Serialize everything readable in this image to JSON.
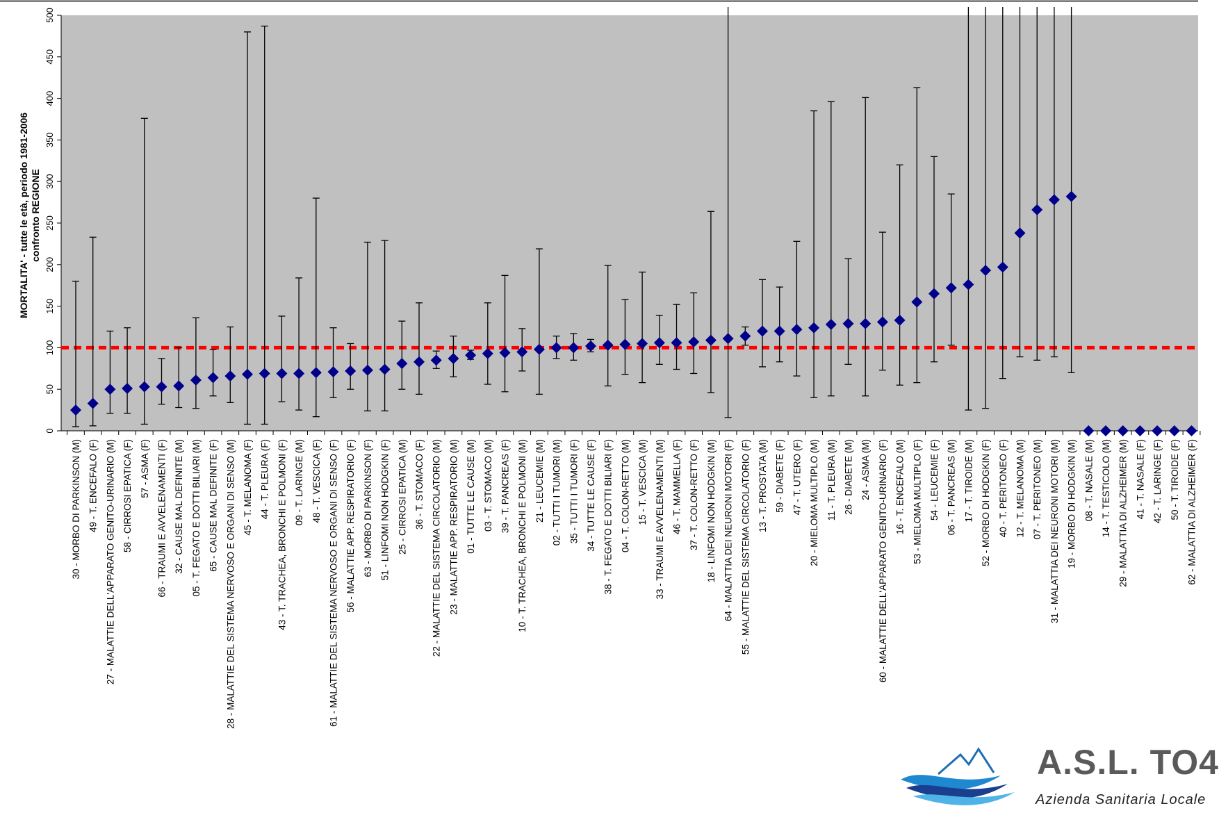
{
  "chart_data": {
    "type": "scatter",
    "ylabel_line1": "MORTALITA' -  tutte le età, periodo 1981-2006",
    "ylabel_line2": "confronto REGIONE",
    "ylim": [
      0,
      500
    ],
    "yticks": [
      0,
      50,
      100,
      150,
      200,
      250,
      300,
      350,
      400,
      450,
      500
    ],
    "reference_line": 100,
    "colors": {
      "plot_bg": "#c0c0c0",
      "marker": "#00008b",
      "reference_line": "#ff0000",
      "whisker": "#000000"
    },
    "grid": false,
    "points": [
      {
        "label": "30 -  MORBO DI PARKINSON (M)",
        "value": 25,
        "low": 5,
        "high": 180
      },
      {
        "label": "49 -  T. ENCEFALO (F)",
        "value": 33,
        "low": 6,
        "high": 233
      },
      {
        "label": "27 -  MALATTIE DELL'APPARATO GENITO-URINARIO (M)",
        "value": 50,
        "low": 21,
        "high": 120
      },
      {
        "label": "58 -  CIRROSI EPATICA (F)",
        "value": 51,
        "low": 21,
        "high": 124
      },
      {
        "label": "57 -  ASMA (F)",
        "value": 53,
        "low": 8,
        "high": 376
      },
      {
        "label": "66 -  TRAUMI E AVVELENAMENTI (F)",
        "value": 53,
        "low": 32,
        "high": 87
      },
      {
        "label": "32 -  CAUSE MAL DEFINITE (M)",
        "value": 54,
        "low": 28,
        "high": 100
      },
      {
        "label": "05 -  T. FEGATO E DOTTI BILIARI (M)",
        "value": 61,
        "low": 27,
        "high": 136
      },
      {
        "label": "65 -  CAUSE MAL DEFINITE (F)",
        "value": 64,
        "low": 42,
        "high": 98
      },
      {
        "label": "28 -  MALATTIE DEL SISTEMA NERVOSO E ORGANI DI SENSO (M)",
        "value": 66,
        "low": 34,
        "high": 125
      },
      {
        "label": "45 -  T. MELANOMA (F)",
        "value": 68,
        "low": 8,
        "high": 480
      },
      {
        "label": "44 -  T. PLEURA (F)",
        "value": 69,
        "low": 8,
        "high": 487
      },
      {
        "label": "43 -  T. TRACHEA, BRONCHI E POLMONI (F)",
        "value": 69,
        "low": 35,
        "high": 138
      },
      {
        "label": "09 -  T. LARINGE (M)",
        "value": 69,
        "low": 25,
        "high": 184
      },
      {
        "label": "48 -  T. VESCICA (F)",
        "value": 70,
        "low": 17,
        "high": 280
      },
      {
        "label": "61 -  MALATTIE DEL SISTEMA NERVOSO E ORGANI DI SENSO (F)",
        "value": 71,
        "low": 40,
        "high": 124
      },
      {
        "label": "56 -  MALATTIE APP. RESPIRATORIO (F)",
        "value": 72,
        "low": 50,
        "high": 105
      },
      {
        "label": "63 -  MORBO DI PARKINSON (F)",
        "value": 73,
        "low": 24,
        "high": 227
      },
      {
        "label": "51 -  LINFOMI NON HODGKIN (F)",
        "value": 74,
        "low": 24,
        "high": 229
      },
      {
        "label": "25 -  CIRROSI EPATICA (M)",
        "value": 81,
        "low": 50,
        "high": 132
      },
      {
        "label": "36 -  T. STOMACO (F)",
        "value": 83,
        "low": 44,
        "high": 154
      },
      {
        "label": "22 -  MALATTIE DEL SISTEMA CIRCOLATORIO (M)",
        "value": 85,
        "low": 75,
        "high": 96
      },
      {
        "label": "23 -  MALATTIE APP. RESPIRATORIO (M)",
        "value": 87,
        "low": 65,
        "high": 114
      },
      {
        "label": "01 -  TUTTE LE CAUSE (M)",
        "value": 91,
        "low": 86,
        "high": 97
      },
      {
        "label": "03 -  T. STOMACO (M)",
        "value": 93,
        "low": 56,
        "high": 154
      },
      {
        "label": "39 -  T. PANCREAS (F)",
        "value": 94,
        "low": 47,
        "high": 187
      },
      {
        "label": "10 -  T. TRACHEA, BRONCHI E POLMONI (M)",
        "value": 95,
        "low": 72,
        "high": 123
      },
      {
        "label": "21 -  LEUCEMIE (M)",
        "value": 98,
        "low": 44,
        "high": 219
      },
      {
        "label": "02 -  TUTTI I TUMORI (M)",
        "value": 100,
        "low": 87,
        "high": 114
      },
      {
        "label": "35 -  TUTTI I TUMORI (F)",
        "value": 100,
        "low": 85,
        "high": 117
      },
      {
        "label": "34 -  TUTTE LE CAUSE (F)",
        "value": 102,
        "low": 95,
        "high": 110
      },
      {
        "label": "38 -  T. FEGATO E DOTTI BILIARI (F)",
        "value": 103,
        "low": 54,
        "high": 199
      },
      {
        "label": "04 -  T. COLON-RETTO (M)",
        "value": 104,
        "low": 68,
        "high": 158
      },
      {
        "label": "15 -  T. VESCICA (M)",
        "value": 105,
        "low": 58,
        "high": 191
      },
      {
        "label": "33 -  TRAUMI E AVVELENAMENTI (M)",
        "value": 106,
        "low": 80,
        "high": 139
      },
      {
        "label": "46 -  T. MAMMELLA (F)",
        "value": 106,
        "low": 74,
        "high": 152
      },
      {
        "label": "37 -  T. COLON-RETTO (F)",
        "value": 107,
        "low": 69,
        "high": 166
      },
      {
        "label": "18 -  LINFOMI NON HODGKIN (M)",
        "value": 109,
        "low": 46,
        "high": 264
      },
      {
        "label": "64 -  MALATTIA DEI NEURONI MOTORI (F)",
        "value": 111,
        "low": 16,
        "high": 510
      },
      {
        "label": "55 -  MALATTIE DEL SISTEMA CIRCOLATORIO (F)",
        "value": 114,
        "low": 103,
        "high": 125
      },
      {
        "label": "13 -  T. PROSTATA (M)",
        "value": 120,
        "low": 77,
        "high": 182
      },
      {
        "label": "59 -  DIABETE (F)",
        "value": 120,
        "low": 83,
        "high": 173
      },
      {
        "label": "47 -  T. UTERO (F)",
        "value": 122,
        "low": 66,
        "high": 228
      },
      {
        "label": "20 -  MIELOMA MULTIPLO (M)",
        "value": 124,
        "low": 40,
        "high": 385
      },
      {
        "label": "11 -  T. PLEURA (M)",
        "value": 128,
        "low": 42,
        "high": 396
      },
      {
        "label": "26 -  DIABETE (M)",
        "value": 129,
        "low": 80,
        "high": 207
      },
      {
        "label": "24 -  ASMA (M)",
        "value": 129,
        "low": 42,
        "high": 401
      },
      {
        "label": "60 -  MALATTIE DELL'APPARATO GENITO-URINARIO (F)",
        "value": 131,
        "low": 73,
        "high": 239
      },
      {
        "label": "16 -  T. ENCEFALO (M)",
        "value": 133,
        "low": 55,
        "high": 320
      },
      {
        "label": "53 -  MIELOMA MULTIPLO (F)",
        "value": 155,
        "low": 58,
        "high": 413
      },
      {
        "label": "54 -  LEUCEMIE (F)",
        "value": 165,
        "low": 83,
        "high": 330
      },
      {
        "label": "06 -  T. PANCREAS (M)",
        "value": 172,
        "low": 103,
        "high": 285
      },
      {
        "label": "17 -  T. TIROIDE (M)",
        "value": 176,
        "low": 25,
        "high": 510
      },
      {
        "label": "52 -  MORBO DI HODGKIN (F)",
        "value": 193,
        "low": 27,
        "high": 510
      },
      {
        "label": "40 -  T. PERITONEO (F)",
        "value": 197,
        "low": 63,
        "high": 510
      },
      {
        "label": "12 -  T. MELANOMA (M)",
        "value": 238,
        "low": 89,
        "high": 510
      },
      {
        "label": "07 -  T. PERITONEO (M)",
        "value": 266,
        "low": 85,
        "high": 510
      },
      {
        "label": "31 -  MALATTIA DEI NEURONI MOTORI (M)",
        "value": 278,
        "low": 89,
        "high": 510
      },
      {
        "label": "19 -  MORBO DI HODGKIN (M)",
        "value": 282,
        "low": 70,
        "high": 510
      },
      {
        "label": "08 -  T. NASALE (M)",
        "value": 0
      },
      {
        "label": "14 -  T. TESTICOLO (M)",
        "value": 0
      },
      {
        "label": "29 -  MALATTIA DI ALZHEIMER (M)",
        "value": 0
      },
      {
        "label": "41 -  T. NASALE (F)",
        "value": 0
      },
      {
        "label": "42 -  T. LARINGE (F)",
        "value": 0
      },
      {
        "label": "50 -  T. TIROIDE (F)",
        "value": 0
      },
      {
        "label": "62 -  MALATTIA DI ALZHEIMER (F)",
        "value": 0
      }
    ]
  },
  "logo": {
    "name": "A.S.L. TO4",
    "subtitle": "Azienda Sanitaria Locale",
    "icon": "mountains-waves-logo-icon"
  }
}
